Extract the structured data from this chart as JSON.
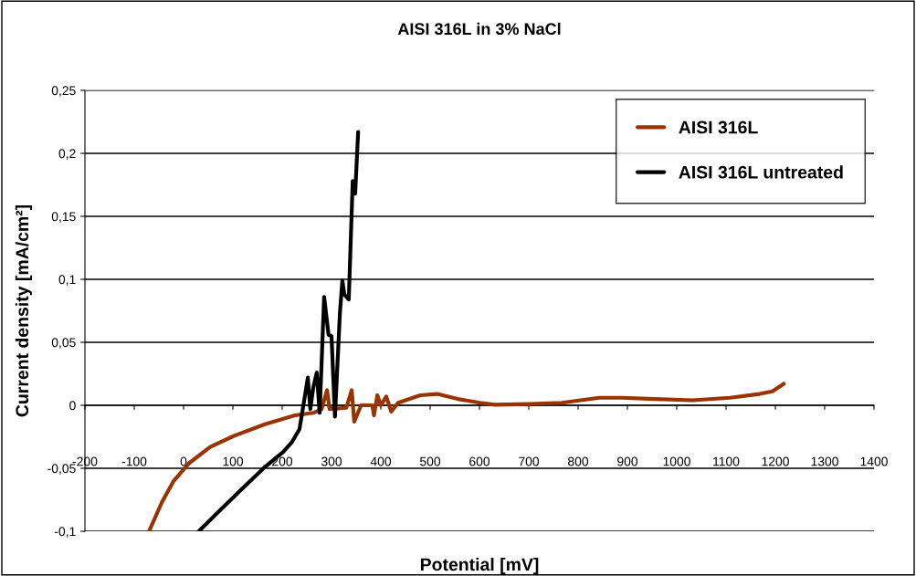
{
  "chart_data": {
    "type": "line",
    "title": "AISI 316L in 3% NaCl",
    "xlabel": "Potential [mV]",
    "ylabel": "Current density [mA/cm²]",
    "xlim": [
      -200,
      1400
    ],
    "xticks": [
      -200,
      -100,
      0,
      100,
      200,
      300,
      400,
      500,
      600,
      700,
      800,
      900,
      1000,
      1100,
      1200,
      1300,
      1400
    ],
    "ylim": [
      -0.1,
      0.25
    ],
    "yticks": [
      {
        "value": -0.1,
        "label": "-0,1"
      },
      {
        "value": -0.05,
        "label": "-0,05"
      },
      {
        "value": 0,
        "label": "0"
      },
      {
        "value": 0.05,
        "label": "0,05"
      },
      {
        "value": 0.1,
        "label": "0,1"
      },
      {
        "value": 0.15,
        "label": "0,15"
      },
      {
        "value": 0.2,
        "label": "0,2"
      },
      {
        "value": 0.25,
        "label": "0,25"
      }
    ],
    "grid": "y",
    "legend": "top right",
    "marker": "none",
    "line_style": "solid",
    "series": [
      {
        "name": "AISI 316L",
        "color": "#993300",
        "x": [
          -70,
          -44,
          -20,
          11,
          54,
          104,
          165,
          226,
          263,
          280,
          291,
          296,
          330,
          341,
          346,
          360,
          383,
          386,
          393,
          400,
          411,
          421,
          435,
          480,
          514,
          556,
          601,
          631,
          700,
          767,
          843,
          888,
          956,
          1032,
          1108,
          1168,
          1194,
          1217
        ],
        "values": [
          -0.1,
          -0.077,
          -0.06,
          -0.046,
          -0.033,
          -0.024,
          -0.015,
          -0.008,
          -0.006,
          -0.003,
          0.012,
          -0.003,
          -0.002,
          0.012,
          -0.013,
          0,
          0,
          -0.008,
          0.008,
          0,
          0.007,
          -0.005,
          0.002,
          0.008,
          0.009,
          0.005,
          0.002,
          0.0005,
          0.001,
          0.002,
          0.006,
          0.006,
          0.005,
          0.004,
          0.006,
          0.009,
          0.011,
          0.017
        ]
      },
      {
        "name": "AISI 316L untreated",
        "color": "#000000",
        "x": [
          31,
          72,
          109,
          165,
          202,
          220,
          235,
          243,
          252,
          257,
          263,
          270,
          276,
          285,
          294,
          300,
          307,
          317,
          322,
          326,
          335,
          343,
          348,
          354
        ],
        "values": [
          -0.1,
          -0.084,
          -0.07,
          -0.049,
          -0.037,
          -0.029,
          -0.019,
          0,
          0.022,
          -0.003,
          0.014,
          0.026,
          -0.006,
          0.086,
          0.056,
          0.055,
          -0.009,
          0.073,
          0.099,
          0.088,
          0.084,
          0.178,
          0.168,
          0.217
        ]
      }
    ]
  }
}
